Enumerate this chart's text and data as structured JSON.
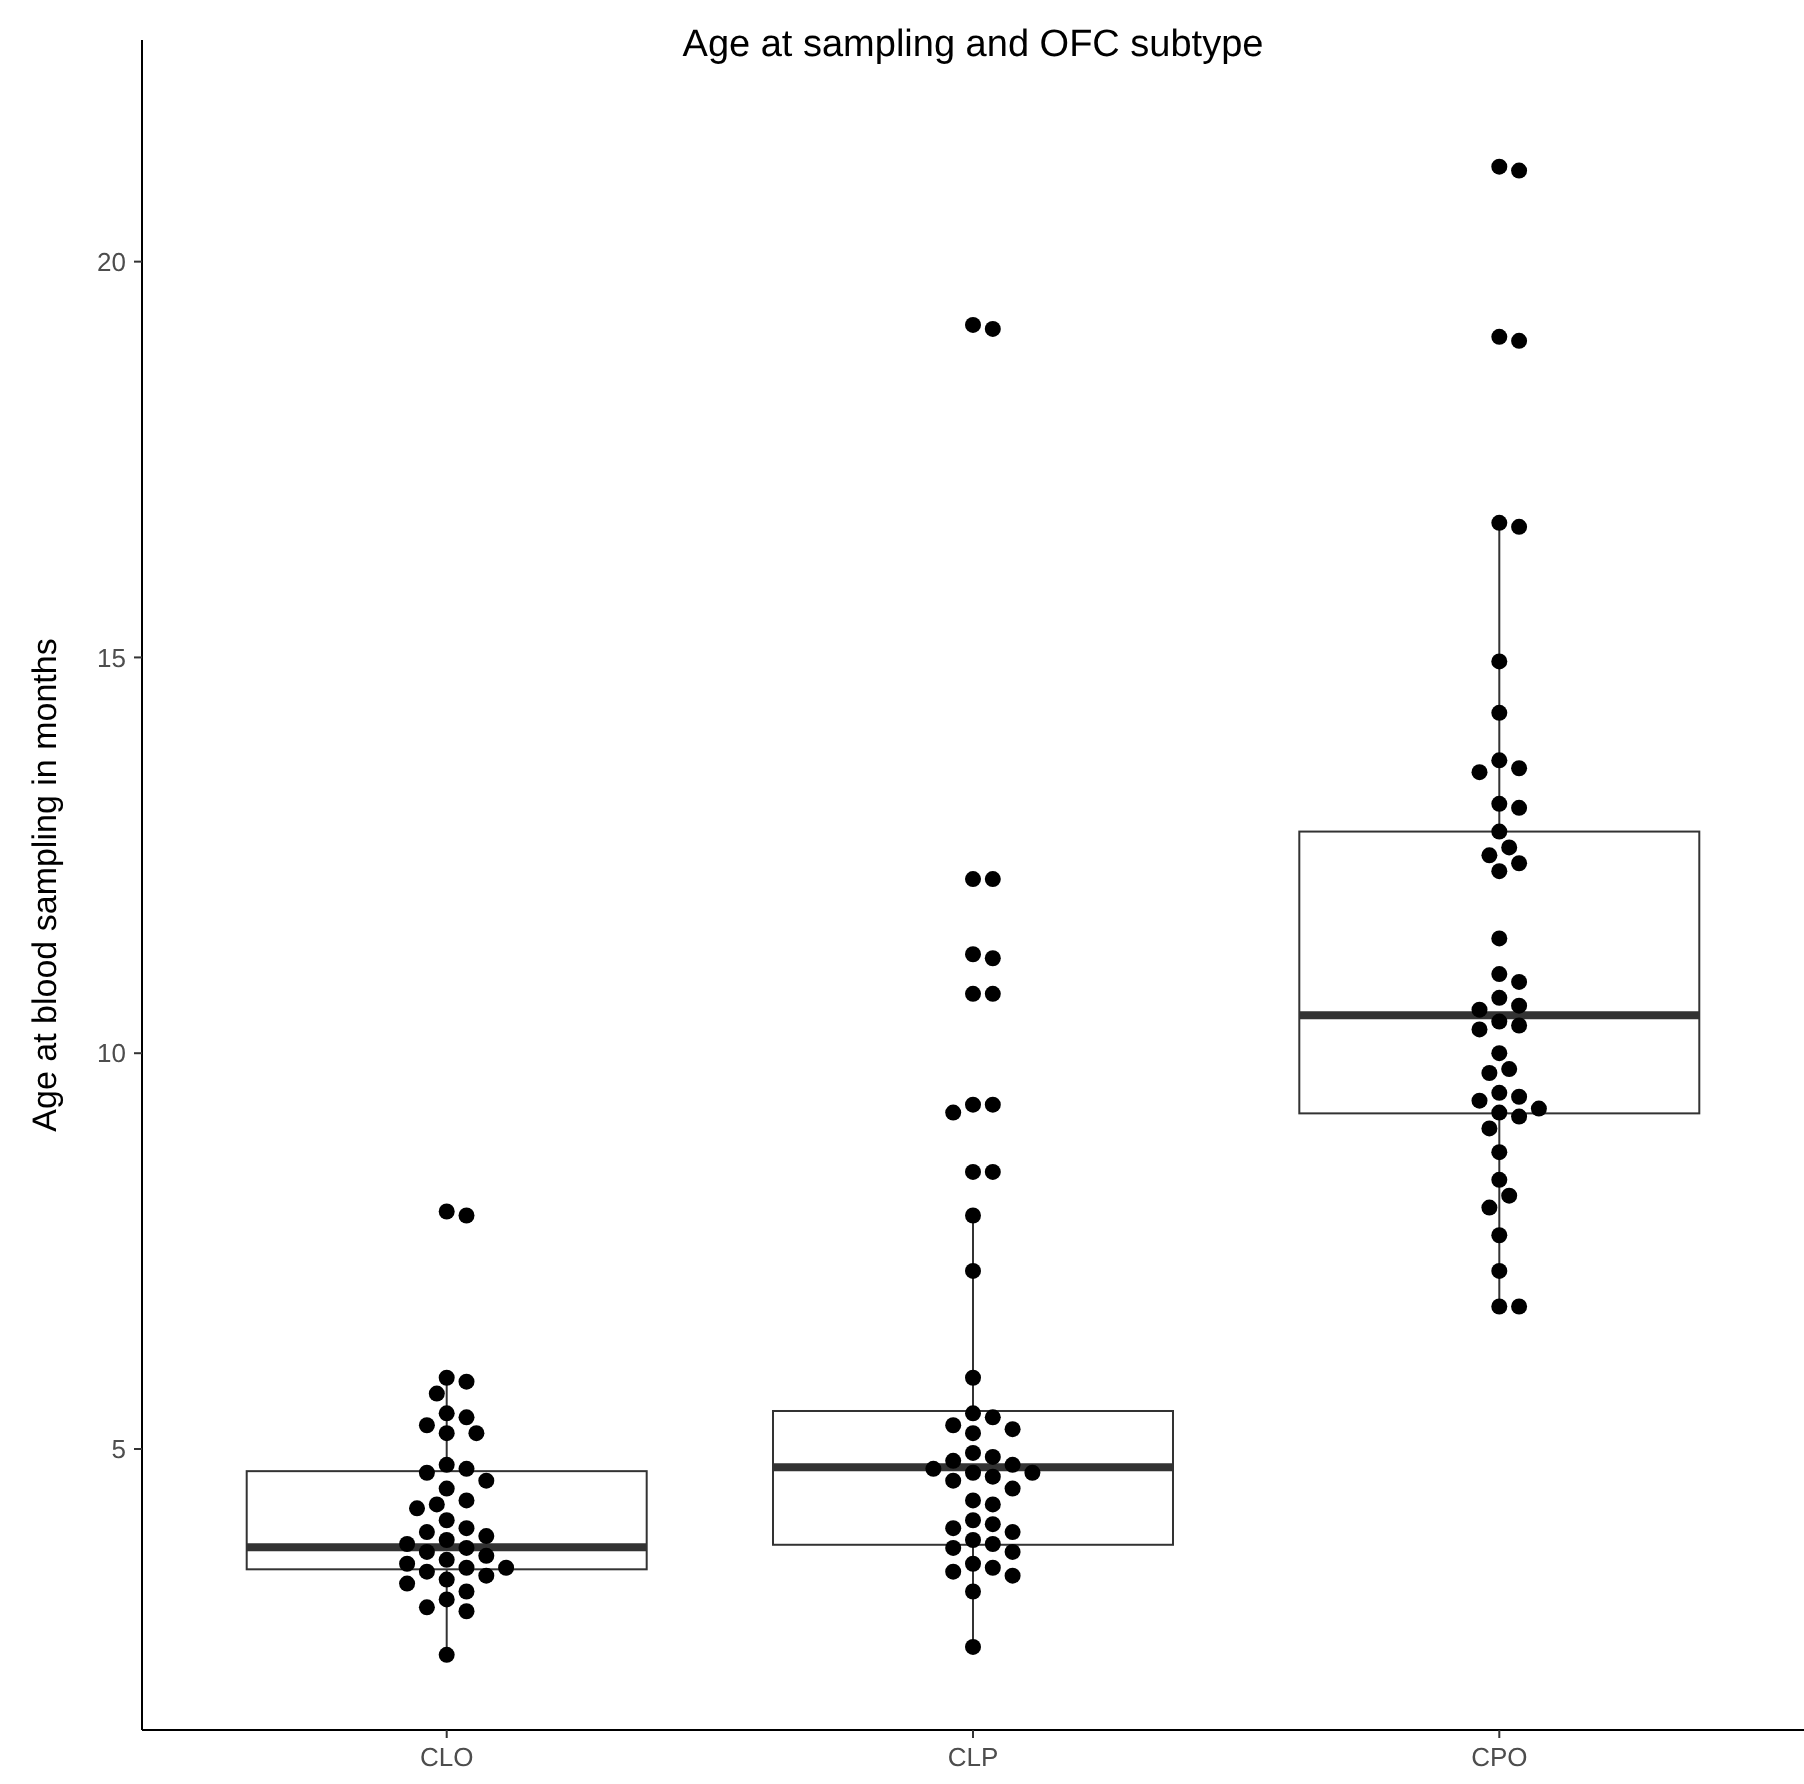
{
  "chart_data": {
    "type": "box",
    "title": "Age at sampling and OFC subtype",
    "ylabel": "Age at blood sampling in months",
    "categories": [
      "CLO",
      "CLP",
      "CPO"
    ],
    "boxes": [
      {
        "low": 2.4,
        "q1": 3.48,
        "median": 3.76,
        "q3": 4.72,
        "high": 5.98
      },
      {
        "low": 2.5,
        "q1": 3.79,
        "median": 4.77,
        "q3": 5.48,
        "high": 8.0
      },
      {
        "low": 6.82,
        "q1": 9.24,
        "median": 10.48,
        "q3": 12.8,
        "high": 16.67
      }
    ],
    "ylim": [
      1.45,
      22.8
    ],
    "yticks": [
      5,
      10,
      15,
      20
    ],
    "grid": false,
    "marker": "circle",
    "series": [
      {
        "type": "scatter",
        "color": "#000000",
        "x": [
          "CLO",
          "CLO",
          "CLO",
          "CLO",
          "CLO",
          "CLO",
          "CLO",
          "CLO",
          "CLO",
          "CLO",
          "CLO",
          "CLO",
          "CLO",
          "CLO",
          "CLO",
          "CLO",
          "CLO",
          "CLO",
          "CLO",
          "CLO",
          "CLO",
          "CLO",
          "CLO",
          "CLO",
          "CLO",
          "CLO",
          "CLO",
          "CLO",
          "CLO",
          "CLO",
          "CLO",
          "CLO",
          "CLO",
          "CLO",
          "CLO",
          "CLO",
          "CLO",
          "CLO",
          "CLO",
          "CLO",
          "CLP",
          "CLP",
          "CLP",
          "CLP",
          "CLP",
          "CLP",
          "CLP",
          "CLP",
          "CLP",
          "CLP",
          "CLP",
          "CLP",
          "CLP",
          "CLP",
          "CLP",
          "CLP",
          "CLP",
          "CLP",
          "CLP",
          "CLP",
          "CLP",
          "CLP",
          "CLP",
          "CLP",
          "CLP",
          "CLP",
          "CLP",
          "CLP",
          "CLP",
          "CLP",
          "CLP",
          "CLP",
          "CLP",
          "CLP",
          "CLP",
          "CLP",
          "CLP",
          "CLP",
          "CLP",
          "CLP",
          "CLP",
          "CLP",
          "CLP",
          "CLP",
          "CLP",
          "CLP",
          "CLP",
          "CPO",
          "CPO",
          "CPO",
          "CPO",
          "CPO",
          "CPO",
          "CPO",
          "CPO",
          "CPO",
          "CPO",
          "CPO",
          "CPO",
          "CPO",
          "CPO",
          "CPO",
          "CPO",
          "CPO",
          "CPO",
          "CPO",
          "CPO",
          "CPO",
          "CPO",
          "CPO",
          "CPO",
          "CPO",
          "CPO",
          "CPO",
          "CPO",
          "CPO",
          "CPO",
          "CPO",
          "CPO",
          "CPO",
          "CPO",
          "CPO",
          "CPO",
          "CPO",
          "CPO",
          "CPO",
          "CPO",
          "CPO",
          "CPO",
          "CPO",
          "CPO",
          "CPO"
        ],
        "values": [
          8.0,
          7.95,
          5.9,
          5.85,
          5.7,
          5.45,
          5.4,
          5.3,
          5.2,
          5.2,
          4.8,
          4.75,
          4.7,
          4.6,
          4.5,
          4.35,
          4.3,
          4.25,
          4.1,
          4.0,
          3.95,
          3.9,
          3.85,
          3.8,
          3.75,
          3.7,
          3.65,
          3.6,
          3.55,
          3.5,
          3.5,
          3.45,
          3.4,
          3.35,
          3.3,
          3.2,
          3.1,
          3.0,
          2.95,
          2.4,
          19.2,
          19.15,
          12.2,
          12.2,
          11.25,
          11.2,
          10.75,
          10.75,
          9.35,
          9.35,
          9.25,
          8.5,
          8.5,
          7.95,
          7.25,
          5.9,
          5.45,
          5.4,
          5.3,
          5.25,
          5.2,
          4.95,
          4.9,
          4.85,
          4.8,
          4.75,
          4.7,
          4.7,
          4.65,
          4.6,
          4.5,
          4.35,
          4.3,
          4.1,
          4.05,
          4.0,
          3.95,
          3.85,
          3.8,
          3.75,
          3.7,
          3.55,
          3.5,
          3.45,
          3.4,
          3.2,
          2.5,
          21.2,
          21.15,
          19.05,
          19.0,
          16.7,
          16.65,
          14.95,
          14.3,
          13.7,
          13.6,
          13.55,
          13.15,
          13.1,
          12.8,
          12.6,
          12.5,
          12.4,
          12.3,
          11.45,
          11.0,
          10.9,
          10.7,
          10.6,
          10.55,
          10.4,
          10.35,
          10.3,
          10.0,
          9.8,
          9.75,
          9.5,
          9.45,
          9.4,
          9.3,
          9.25,
          9.2,
          9.05,
          8.75,
          8.4,
          8.2,
          8.05,
          7.7,
          7.25,
          6.8,
          6.8
        ]
      }
    ]
  }
}
